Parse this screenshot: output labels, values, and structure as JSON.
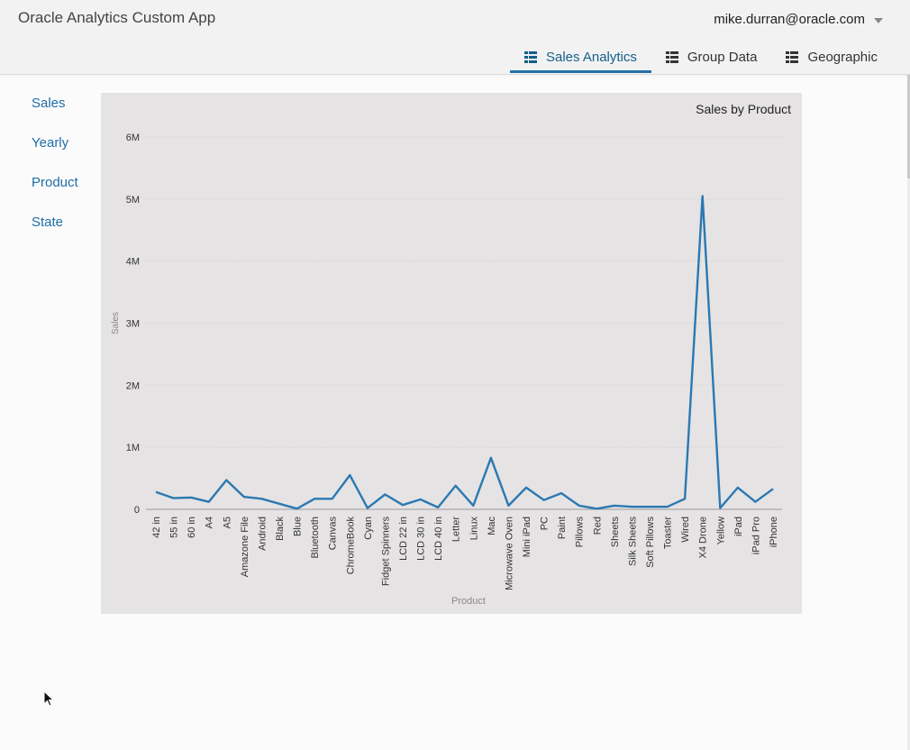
{
  "header": {
    "title": "Oracle Analytics Custom App",
    "user_email": "mike.durran@oracle.com"
  },
  "tabs": [
    {
      "label": "Sales Analytics",
      "icon": "grid-list-icon",
      "active": true
    },
    {
      "label": "Group Data",
      "icon": "grid-list-icon",
      "active": false
    },
    {
      "label": "Geographic",
      "icon": "grid-list-icon",
      "active": false
    }
  ],
  "sidebar": {
    "items": [
      {
        "label": "Sales"
      },
      {
        "label": "Yearly"
      },
      {
        "label": "Product"
      },
      {
        "label": "State"
      }
    ]
  },
  "colors": {
    "accent": "#2271a7",
    "link": "#1f6ea6",
    "line": "#2a79b2",
    "chart_bg": "#e6e3e4"
  },
  "chart_data": {
    "type": "line",
    "title": "Sales by Product",
    "xlabel": "Product",
    "ylabel": "Sales",
    "ylim": [
      0,
      6000000
    ],
    "yticks": [
      {
        "value": 0,
        "label": "0"
      },
      {
        "value": 1000000,
        "label": "1M"
      },
      {
        "value": 2000000,
        "label": "2M"
      },
      {
        "value": 3000000,
        "label": "3M"
      },
      {
        "value": 4000000,
        "label": "4M"
      },
      {
        "value": 5000000,
        "label": "5M"
      },
      {
        "value": 6000000,
        "label": "6M"
      }
    ],
    "grid": true,
    "categories": [
      "42 in",
      "55 in",
      "60 in",
      "A4",
      "A5",
      "Amazone File",
      "Android",
      "Black",
      "Blue",
      "Bluetooth",
      "Canvas",
      "ChromeBook",
      "Cyan",
      "Fidget Spinners",
      "LCD 22 in",
      "LCD 30 in",
      "LCD 40 in",
      "Letter",
      "Linux",
      "Mac",
      "Microwave Oven",
      "Mini iPad",
      "PC",
      "Paint",
      "Pillows",
      "Red",
      "Sheets",
      "Silk Sheets",
      "Soft Pillows",
      "Toaster",
      "Wired",
      "X4 Drone",
      "Yellow",
      "iPad",
      "iPad Pro",
      "iPhone"
    ],
    "values": [
      280000,
      180000,
      190000,
      120000,
      470000,
      200000,
      170000,
      90000,
      10000,
      170000,
      170000,
      550000,
      20000,
      240000,
      70000,
      160000,
      30000,
      380000,
      60000,
      830000,
      60000,
      350000,
      150000,
      260000,
      60000,
      10000,
      60000,
      40000,
      40000,
      40000,
      170000,
      5050000,
      20000,
      350000,
      120000,
      330000
    ]
  }
}
